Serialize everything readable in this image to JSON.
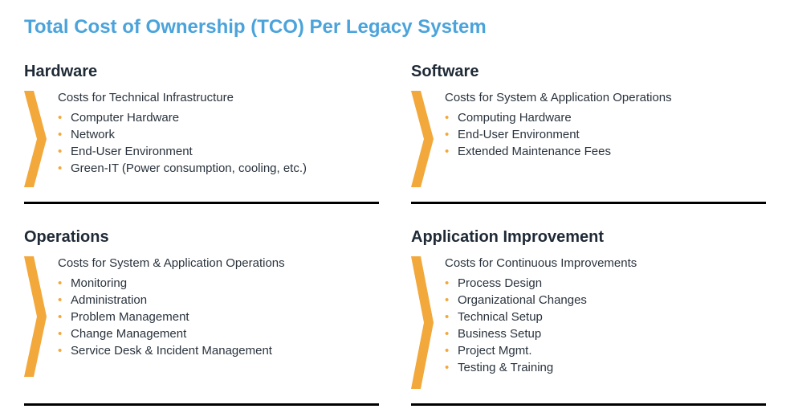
{
  "title": "Total Cost of Ownership (TCO) Per Legacy System",
  "title_color": "#4ba3db",
  "title_fontsize": 24,
  "accent_color": "#f2a83b",
  "bullet_color": "#f2a83b",
  "text_color": "#2a333d",
  "border_color": "#000000",
  "background_color": "#ffffff",
  "sections": [
    {
      "heading": "Hardware",
      "subtitle": "Costs for Technical Infrastructure",
      "items": [
        "Computer Hardware",
        "Network",
        "End-User Environment",
        "Green-IT (Power consumption, cooling, etc.)"
      ],
      "chevron_height": 120
    },
    {
      "heading": "Software",
      "subtitle": "Costs for System & Application Operations",
      "items": [
        "Computing Hardware",
        "End-User Environment",
        "Extended Maintenance Fees"
      ],
      "chevron_height": 120
    },
    {
      "heading": "Operations",
      "subtitle": "Costs for System & Application Operations",
      "items": [
        "Monitoring",
        "Administration",
        "Problem Management",
        "Change Management",
        "Service Desk & Incident Management"
      ],
      "chevron_height": 150
    },
    {
      "heading": "Application Improvement",
      "subtitle": "Costs for Continuous Improvements",
      "items": [
        "Process Design",
        "Organizational Changes",
        "Technical Setup",
        "Business Setup",
        "Project Mgmt.",
        "Testing & Training"
      ],
      "chevron_height": 165
    }
  ]
}
